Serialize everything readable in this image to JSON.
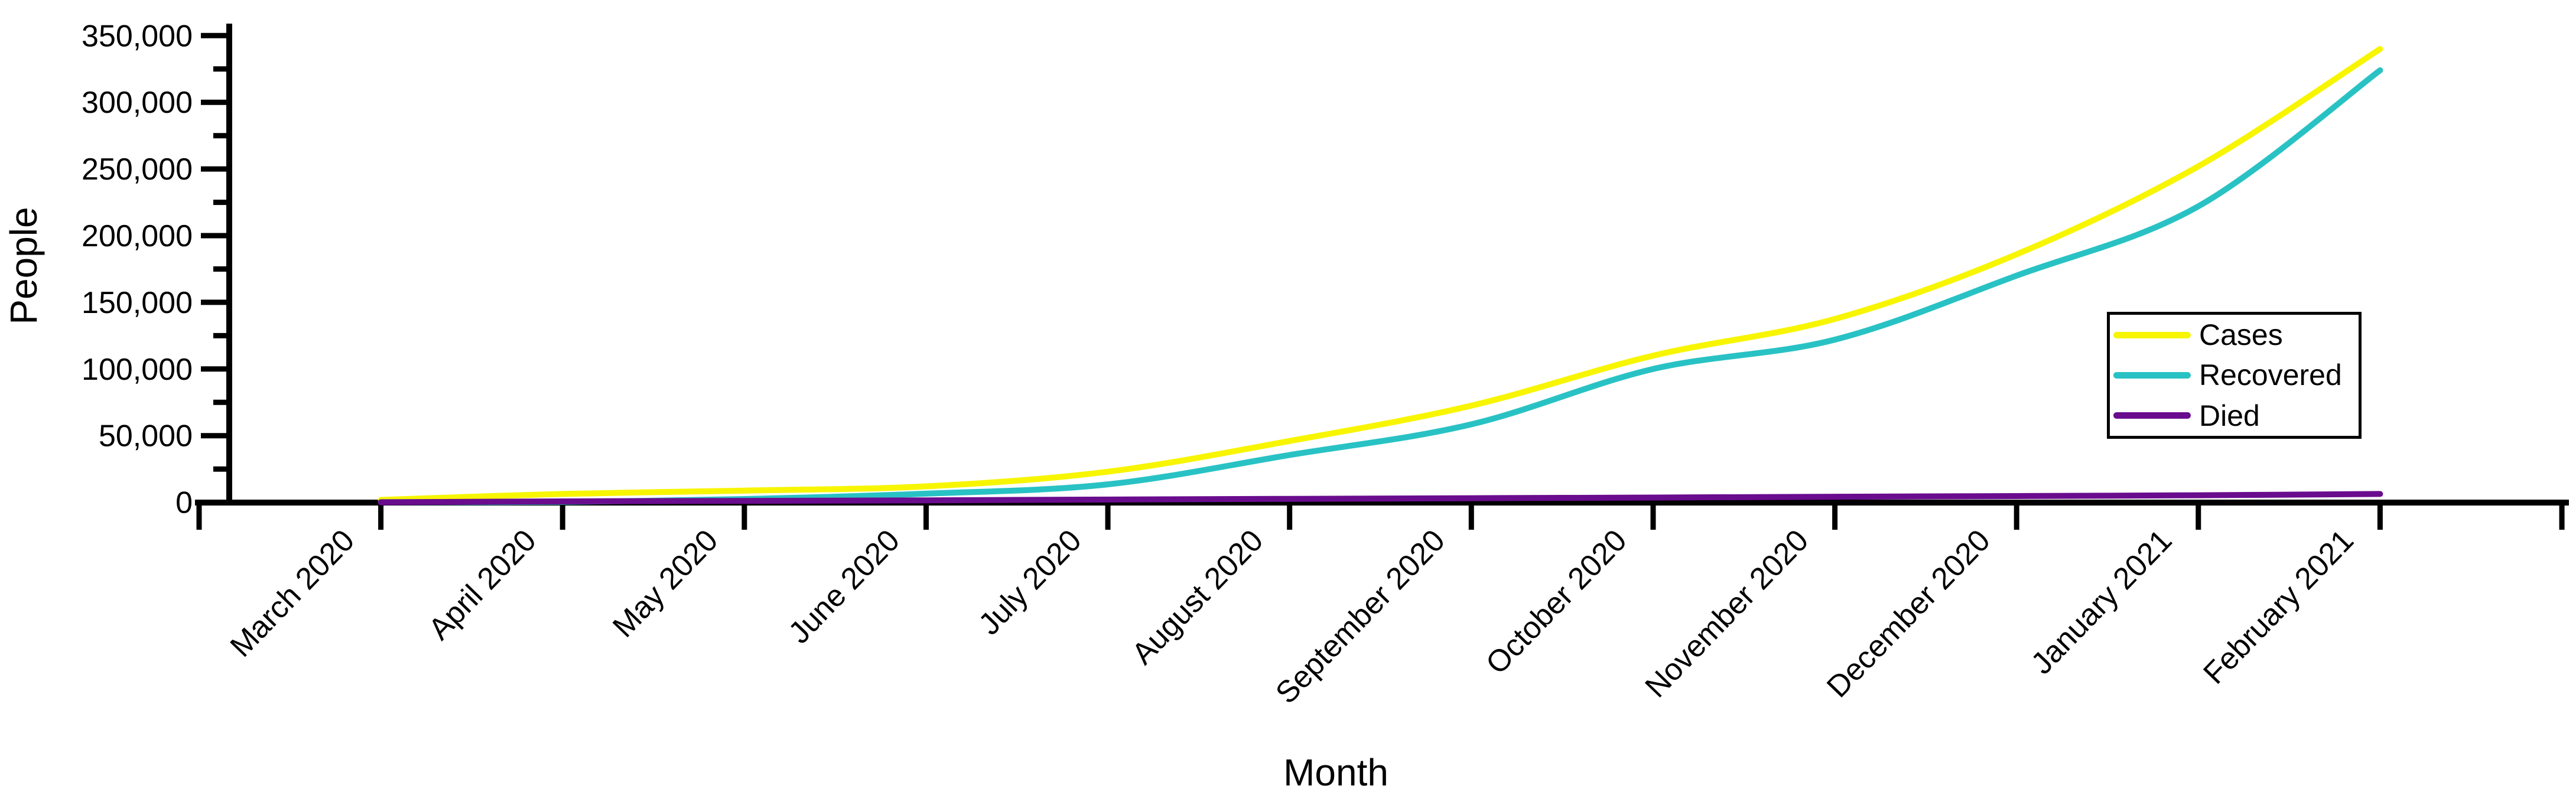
{
  "chart_data": {
    "type": "line",
    "xlabel": "Month",
    "ylabel": "People",
    "categories": [
      "March 2020",
      "April 2020",
      "May 2020",
      "June 2020",
      "July 2020",
      "August 2020",
      "September 2020",
      "October 2020",
      "November 2020",
      "December 2020",
      "January 2021",
      "February 2021"
    ],
    "series": [
      {
        "name": "Cases",
        "color": "#f7f500",
        "values": [
          1800,
          6300,
          8800,
          12000,
          23000,
          46000,
          72500,
          110000,
          137500,
          186000,
          252000,
          340000
        ]
      },
      {
        "name": "Recovered",
        "color": "#29c2c4",
        "values": [
          150,
          400,
          2500,
          6500,
          13500,
          35500,
          58500,
          100000,
          122000,
          170000,
          222000,
          324000
        ]
      },
      {
        "name": "Died",
        "color": "#6a0c8e",
        "values": [
          60,
          700,
          1100,
          1500,
          2100,
          2600,
          3100,
          3600,
          4200,
          4700,
          5300,
          6300
        ]
      }
    ],
    "ylim": [
      0,
      350000
    ],
    "y_major_step": 50000,
    "y_minor_step": 25000,
    "y_tick_labels": [
      "0",
      "50,000",
      "100,000",
      "150,000",
      "200,000",
      "250,000",
      "300,000",
      "350,000"
    ],
    "legend_position": "right-middle",
    "grid": false,
    "axis_color": "#000000"
  }
}
